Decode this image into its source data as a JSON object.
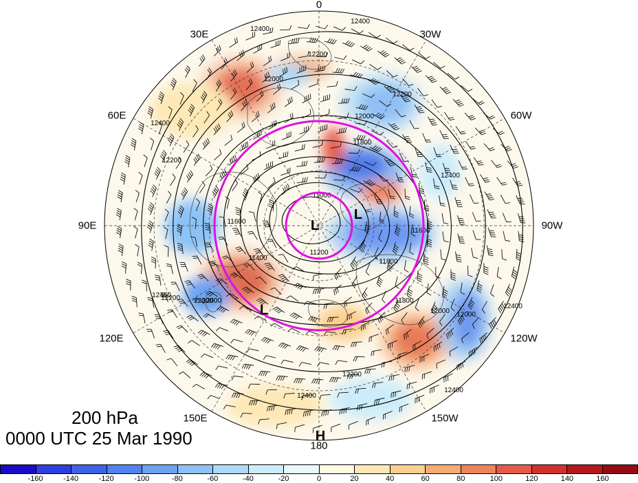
{
  "title": {
    "level": "200 hPa",
    "time": "0000 UTC 25 Mar 1990"
  },
  "longitude_labels": [
    "0",
    "30W",
    "60W",
    "90W",
    "120W",
    "150W",
    "180",
    "150E",
    "120E",
    "90E",
    "60E",
    "30E"
  ],
  "contour_labels": [
    "12400",
    "12400",
    "12200",
    "12200",
    "12000",
    "12000",
    "12000",
    "11800",
    "11800",
    "11800",
    "11600",
    "11600",
    "11400",
    "11200",
    "11000",
    "12400",
    "12200",
    "12200",
    "12400",
    "12000",
    "12000",
    "12000",
    "12400",
    "12200",
    "12400",
    "12400",
    "12400"
  ],
  "pressure_centers": [
    "L",
    "L",
    "L",
    "H"
  ],
  "colorbar": {
    "labels": [
      "-160",
      "-140",
      "-120",
      "-100",
      "-80",
      "-60",
      "-40",
      "-20",
      "0",
      "20",
      "40",
      "60",
      "80",
      "100",
      "120",
      "140",
      "160"
    ],
    "colors": [
      "#1a0bc8",
      "#2f3ee0",
      "#3f62e8",
      "#4f84ee",
      "#6aa3f2",
      "#8cc2f6",
      "#add9f8",
      "#ccecfb",
      "#eaf7fd",
      "#fffae0",
      "#fde8b6",
      "#fbcf8f",
      "#f6ab72",
      "#ef835c",
      "#e55a48",
      "#d3312f",
      "#b8161d",
      "#960a14"
    ]
  }
}
